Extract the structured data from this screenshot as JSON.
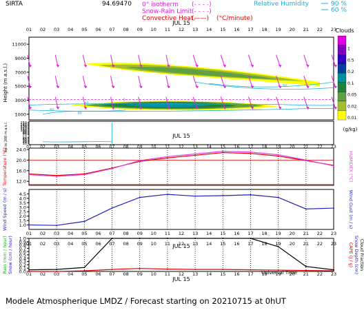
{
  "header": {
    "station": "SIRTA",
    "station_id": "94.69470",
    "legend": [
      {
        "label": "0° isotherm",
        "sample": "(- - - -)",
        "color": "#e020e0"
      },
      {
        "label": "Snow-Rain Limit",
        "sample": "(- - - -)",
        "color": "#e020e0"
      },
      {
        "label": "Convective Heat.",
        "sample": "(——)",
        "unit": "(°C/minute)",
        "color": "#e00000"
      }
    ],
    "rh_label": "Relative Humidity",
    "rh_values": [
      "90 %",
      "60 %"
    ],
    "rh_color": "#1ab0d8"
  },
  "footer": {
    "text": "Modele Atmospherique LMDZ / Forecast starting on 20210715 at 0hUT"
  },
  "chart_data": [
    {
      "type": "heatmap",
      "name": "clouds-panel",
      "x_ticks": [
        "01",
        "02",
        "03",
        "04",
        "05",
        "06",
        "07",
        "08",
        "09",
        "10",
        "11",
        "12",
        "13",
        "14",
        "15",
        "16",
        "17",
        "18",
        "19",
        "20",
        "21",
        "22",
        "23"
      ],
      "date_label": "JUL 15",
      "y_upper_label": "Height (m a.s.l.)",
      "y_upper_ticks": [
        1000,
        3000,
        5000,
        7000,
        9000,
        11000
      ],
      "y_lower_label": "Up to 200 m a.s.l.",
      "y_lower_ticks": [
        10,
        20,
        30,
        40,
        50,
        70,
        80,
        90,
        100,
        110,
        120,
        130,
        140,
        150
      ],
      "colorbar": {
        "title": "Clouds",
        "unit": "(g/kg)",
        "labels": [
          "1",
          "0.5",
          "0.2",
          "0.1",
          "0.05",
          "0.02",
          "0.01"
        ],
        "colors": [
          "#e000e0",
          "#8000c0",
          "#3000c0",
          "#0040a0",
          "#0090a0",
          "#208040",
          "#60a040",
          "#a0c030",
          "#ffff00"
        ]
      },
      "isotherm_height_m": 3100,
      "contour_labels": [
        "90",
        "60",
        "0"
      ],
      "wind_arrows": true
    },
    {
      "type": "line",
      "name": "temperature-panel",
      "ylabel": "Temperature (°C)",
      "ylabel_right": "HUMIDEX (°C)",
      "y_ticks": [
        12.0,
        16.0,
        20.0,
        24.0
      ],
      "ylim": [
        10.5,
        24.5
      ],
      "x_ticks": [
        "01",
        "02",
        "03",
        "04",
        "05",
        "06",
        "07",
        "08",
        "09",
        "10",
        "11",
        "12",
        "13",
        "14",
        "15",
        "16",
        "17",
        "18",
        "19",
        "20",
        "21",
        "22",
        "23"
      ],
      "date_label": "JUL 15",
      "series": [
        {
          "color": "#e00000",
          "x": [
            1,
            3,
            5,
            7,
            9,
            11,
            13,
            15,
            17,
            19,
            21,
            23
          ],
          "values": [
            14.8,
            14.2,
            14.8,
            17.0,
            19.5,
            20.8,
            21.8,
            22.8,
            22.5,
            21.5,
            19.8,
            18.0
          ]
        },
        {
          "color": "#e040e0",
          "x": [
            1,
            3,
            5,
            7,
            9,
            11,
            13,
            15,
            17,
            19,
            21,
            23
          ],
          "values": [
            14.5,
            13.9,
            14.5,
            16.8,
            19.8,
            21.3,
            22.3,
            23.3,
            23.0,
            22.0,
            20.0,
            17.8
          ]
        }
      ],
      "hlines": [
        20.0,
        10.8
      ]
    },
    {
      "type": "line",
      "name": "wind-panel",
      "ylabel": "Wind Speed (m / s)",
      "ylabel_right": "Wind Gust (m / s)",
      "y_ticks": [
        1.0,
        1.5,
        2.0,
        2.5,
        3.0,
        3.5,
        4.0,
        4.5
      ],
      "ylim": [
        0.5,
        5.0
      ],
      "x_ticks": [
        "01",
        "02",
        "03",
        "04",
        "05",
        "06",
        "07",
        "08",
        "09",
        "10",
        "11",
        "12",
        "13",
        "14",
        "15",
        "16",
        "17",
        "18",
        "19",
        "20",
        "21",
        "22",
        "23"
      ],
      "series": [
        {
          "color": "#2020c0",
          "x": [
            1,
            3,
            5,
            7,
            9,
            11,
            13,
            15,
            17,
            19,
            21,
            23
          ],
          "values": [
            1.0,
            0.95,
            1.4,
            2.9,
            4.1,
            4.45,
            4.25,
            4.3,
            4.4,
            4.1,
            2.8,
            2.9
          ]
        }
      ]
    },
    {
      "type": "line",
      "name": "precip-panel",
      "ylabel": "Rain (mm / hour)",
      "ylabel2": "Snow (cm / hour)",
      "ylabel_right": "CAPE (J / g)",
      "ylabel_right2": "Snow Depth (cm)",
      "ylabel_right3": "Cloud Fraction",
      "y_ticks": [
        0.0,
        0.1,
        0.2,
        0.3,
        0.4,
        0.5,
        0.6,
        0.7,
        0.8,
        0.9,
        1.0
      ],
      "ylim": [
        0.0,
        1.0
      ],
      "x_ticks": [
        "01",
        "02",
        "03",
        "04",
        "05",
        "06",
        "07",
        "08",
        "09",
        "10",
        "11",
        "12",
        "13",
        "14",
        "15",
        "16",
        "17",
        "18",
        "19",
        "20",
        "21",
        "22",
        "23"
      ],
      "date_label": "JUL 15",
      "xlabel": "Universal Time",
      "series": [
        {
          "color": "#000000",
          "x": [
            1,
            3,
            5,
            7,
            9,
            11,
            13,
            15,
            17,
            19,
            21,
            23
          ],
          "values": [
            0.05,
            0.06,
            0.12,
            1.0,
            1.0,
            1.0,
            1.0,
            1.0,
            1.0,
            0.75,
            0.15,
            0.05
          ]
        },
        {
          "color": "#e00000",
          "x": [
            1,
            3,
            5,
            7,
            9,
            11,
            13,
            15,
            17,
            19,
            21,
            23
          ],
          "values": [
            0.0,
            0.0,
            0.02,
            0.06,
            0.09,
            0.07,
            0.06,
            0.06,
            0.05,
            0.04,
            0.03,
            0.02
          ]
        }
      ]
    }
  ]
}
